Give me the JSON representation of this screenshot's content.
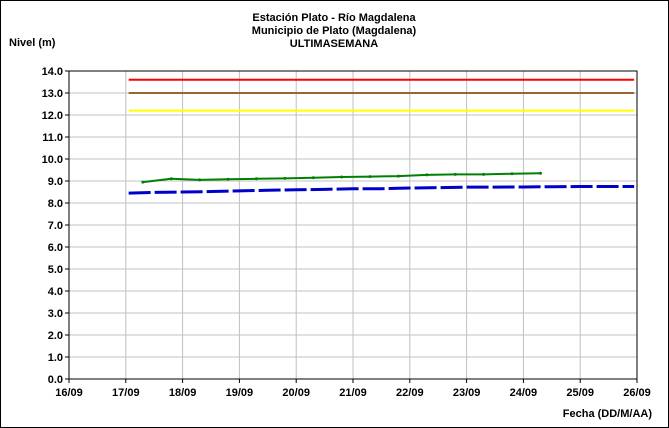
{
  "chart_data": {
    "type": "line",
    "title_lines": [
      "Estación Plato - Río Magdalena",
      "Municipio de Plato (Magdalena)",
      "ULTIMASEMANA"
    ],
    "ylabel": "Nivel (m)",
    "xlabel": "Fecha (DD/M/AA)",
    "ylim": [
      0,
      14
    ],
    "yticks": [
      "0.0",
      "1.0",
      "2.0",
      "3.0",
      "4.0",
      "5.0",
      "6.0",
      "7.0",
      "8.0",
      "9.0",
      "10.0",
      "11.0",
      "12.0",
      "13.0",
      "14.0"
    ],
    "xlim": [
      0,
      10
    ],
    "xticks": [
      "16/09",
      "17/09",
      "18/09",
      "19/09",
      "20/09",
      "21/09",
      "22/09",
      "23/09",
      "24/09",
      "25/09",
      "26/09"
    ],
    "grid": true,
    "series": [
      {
        "color": "#ff0000",
        "style": "solid",
        "x": [
          1.05,
          9.95
        ],
        "y": [
          13.6,
          13.6
        ]
      },
      {
        "color": "#996633",
        "style": "solid",
        "x": [
          1.05,
          9.95
        ],
        "y": [
          13.0,
          13.0
        ]
      },
      {
        "color": "#ffff00",
        "style": "solid",
        "x": [
          1.05,
          9.95
        ],
        "y": [
          12.2,
          12.2
        ]
      },
      {
        "color": "#008000",
        "style": "solid",
        "x": [
          1.3,
          1.8,
          2.3,
          2.8,
          3.3,
          3.8,
          4.3,
          4.8,
          5.3,
          5.8,
          6.3,
          6.8,
          7.3,
          7.8,
          8.3
        ],
        "y": [
          8.95,
          9.1,
          9.05,
          9.08,
          9.1,
          9.12,
          9.15,
          9.18,
          9.2,
          9.22,
          9.28,
          9.3,
          9.3,
          9.33,
          9.35
        ]
      },
      {
        "color": "#0000cc",
        "style": "dashed",
        "x": [
          1.05,
          1.5,
          2.0,
          2.5,
          3.0,
          3.5,
          4.0,
          4.5,
          5.0,
          5.5,
          6.0,
          6.5,
          7.0,
          7.5,
          8.0,
          8.5,
          9.0,
          9.95
        ],
        "y": [
          8.45,
          8.48,
          8.5,
          8.52,
          8.55,
          8.58,
          8.6,
          8.62,
          8.65,
          8.65,
          8.68,
          8.7,
          8.72,
          8.72,
          8.73,
          8.74,
          8.75,
          8.75
        ]
      }
    ]
  }
}
